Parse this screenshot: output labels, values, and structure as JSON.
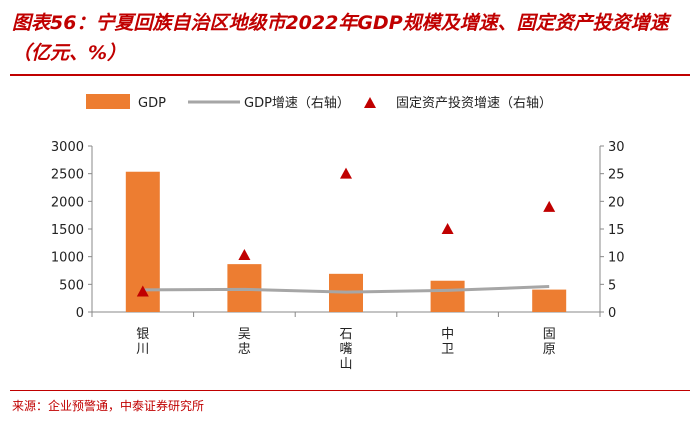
{
  "title": "图表56：宁夏回族自治区地级市2022年GDP规模及增速、固定资产投资增速（亿元、%）",
  "source": "来源：企业预警通，中泰证券研究所",
  "colors": {
    "bar": "#ed7d31",
    "line": "#a6a6a6",
    "marker": "#c00000",
    "accent": "#c00000"
  },
  "chart_data": {
    "type": "bar",
    "categories": [
      "银川",
      "吴忠",
      "石嘴山",
      "中卫",
      "固原"
    ],
    "series": [
      {
        "name": "GDP",
        "type": "bar",
        "axis": "left",
        "values": [
          2535,
          865,
          690,
          565,
          405
        ]
      },
      {
        "name": "GDP增速（右轴）",
        "type": "line",
        "axis": "right",
        "values": [
          4.0,
          4.1,
          3.6,
          3.9,
          4.6
        ]
      },
      {
        "name": "固定资产投资增速（右轴）",
        "type": "scatter",
        "axis": "right",
        "values": [
          3.7,
          10.3,
          25.0,
          15.0,
          19.0
        ]
      }
    ],
    "y_left": {
      "min": 0,
      "max": 3000,
      "ticks": [
        0,
        500,
        1000,
        1500,
        2000,
        2500,
        3000
      ]
    },
    "y_right": {
      "min": 0,
      "max": 30,
      "ticks": [
        0,
        5,
        10,
        15,
        20,
        25,
        30
      ]
    },
    "legend": "top"
  }
}
